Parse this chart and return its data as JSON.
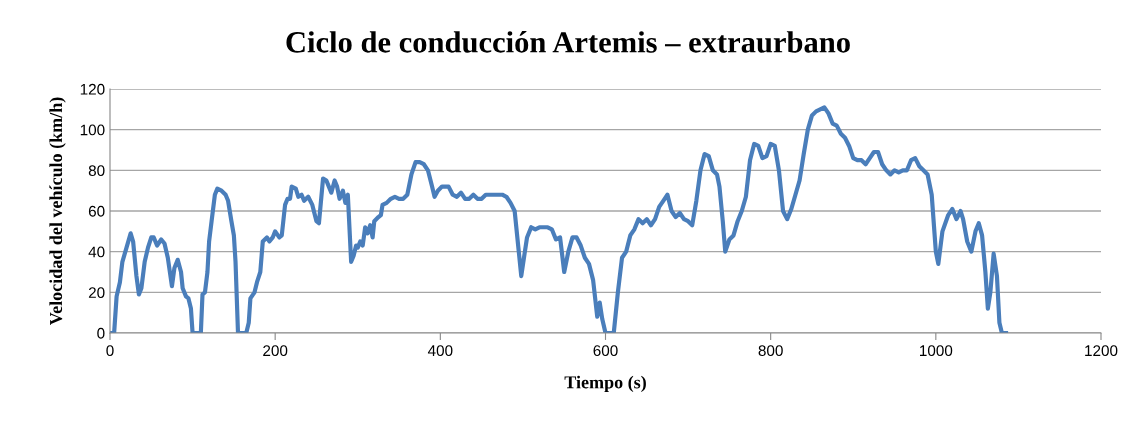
{
  "chart_data": {
    "type": "line",
    "title": "Ciclo de conducción Artemis – extraurbano",
    "xlabel": "Tiempo (s)",
    "ylabel": "Velocidad del vehículo (km/h)",
    "xlim": [
      0,
      1200
    ],
    "xticks": [
      0,
      200,
      400,
      600,
      800,
      1000,
      1200
    ],
    "ylim": [
      0,
      120
    ],
    "yticks": [
      0,
      20,
      40,
      60,
      80,
      100,
      120
    ],
    "grid": "y",
    "marker": "none",
    "line_style": "solid",
    "series": [
      {
        "color": "#4a7ebb",
        "x": [
          0,
          5,
          8,
          12,
          15,
          20,
          25,
          28,
          32,
          35,
          38,
          42,
          46,
          50,
          53,
          57,
          62,
          66,
          70,
          75,
          78,
          82,
          86,
          88,
          92,
          95,
          98,
          100,
          110,
          112,
          115,
          118,
          120,
          123,
          127,
          130,
          135,
          140,
          143,
          147,
          150,
          152,
          155,
          165,
          168,
          170,
          175,
          178,
          182,
          185,
          190,
          193,
          197,
          200,
          205,
          208,
          212,
          215,
          218,
          220,
          225,
          228,
          232,
          235,
          240,
          245,
          250,
          253,
          258,
          262,
          265,
          268,
          272,
          275,
          278,
          282,
          285,
          288,
          292,
          295,
          298,
          300,
          303,
          306,
          309,
          312,
          315,
          318,
          320,
          325,
          328,
          330,
          335,
          340,
          345,
          350,
          355,
          360,
          365,
          370,
          375,
          380,
          385,
          390,
          393,
          397,
          402,
          410,
          415,
          420,
          425,
          430,
          435,
          440,
          445,
          450,
          455,
          460,
          470,
          475,
          480,
          485,
          490,
          495,
          498,
          502,
          505,
          510,
          515,
          520,
          530,
          535,
          540,
          545,
          550,
          555,
          560,
          565,
          570,
          575,
          580,
          585,
          590,
          593,
          596,
          600,
          610,
          615,
          620,
          625,
          630,
          635,
          640,
          645,
          650,
          655,
          660,
          665,
          670,
          675,
          680,
          685,
          690,
          695,
          700,
          705,
          710,
          715,
          720,
          725,
          730,
          735,
          738,
          742,
          745,
          750,
          755,
          760,
          765,
          770,
          775,
          780,
          785,
          790,
          795,
          800,
          805,
          810,
          815,
          820,
          825,
          830,
          835,
          840,
          845,
          850,
          855,
          860,
          865,
          870,
          875,
          880,
          885,
          890,
          895,
          900,
          905,
          910,
          915,
          920,
          925,
          930,
          935,
          940,
          945,
          950,
          955,
          960,
          965,
          970,
          975,
          980,
          985,
          990,
          995,
          1000,
          1003,
          1008,
          1015,
          1020,
          1025,
          1030,
          1033,
          1038,
          1043,
          1048,
          1052,
          1056,
          1060,
          1063,
          1066,
          1070,
          1074,
          1077,
          1080,
          1085
        ],
        "values": [
          0,
          0,
          18,
          25,
          35,
          42,
          49,
          45,
          28,
          19,
          22,
          35,
          42,
          47,
          47,
          43,
          46,
          44,
          37,
          23,
          32,
          36,
          30,
          22,
          18,
          17,
          12,
          0,
          0,
          19,
          20,
          30,
          45,
          55,
          68,
          71,
          70,
          68,
          65,
          55,
          48,
          35,
          0,
          0,
          5,
          17,
          20,
          25,
          30,
          45,
          47,
          45,
          47,
          50,
          47,
          48,
          63,
          66,
          66,
          72,
          71,
          67,
          68,
          65,
          67,
          63,
          55,
          54,
          76,
          75,
          72,
          69,
          75,
          72,
          66,
          70,
          64,
          68,
          35,
          38,
          43,
          42,
          45,
          43,
          52,
          49,
          53,
          47,
          55,
          57,
          58,
          63,
          64,
          66,
          67,
          66,
          66,
          68,
          78,
          84,
          84,
          83,
          80,
          72,
          67,
          70,
          72,
          72,
          68,
          67,
          69,
          66,
          66,
          68,
          66,
          66,
          68,
          68,
          68,
          68,
          67,
          64,
          60,
          40,
          28,
          39,
          47,
          52,
          51,
          52,
          52,
          51,
          46,
          47,
          30,
          40,
          47,
          47,
          43,
          37,
          34,
          26,
          8,
          15,
          7,
          0,
          0,
          20,
          37,
          40,
          48,
          51,
          56,
          54,
          56,
          53,
          56,
          62,
          65,
          68,
          60,
          57,
          59,
          56,
          55,
          53,
          65,
          80,
          88,
          87,
          80,
          78,
          72,
          55,
          40,
          46,
          48,
          55,
          60,
          67,
          85,
          93,
          92,
          86,
          87,
          93,
          92,
          80,
          60,
          56,
          61,
          68,
          75,
          88,
          100,
          107,
          109,
          110,
          111,
          108,
          103,
          102,
          98,
          96,
          92,
          86,
          85,
          85,
          83,
          86,
          89,
          89,
          83,
          80,
          78,
          80,
          79,
          80,
          80,
          85,
          86,
          82,
          80,
          78,
          68,
          40,
          34,
          50,
          58,
          61,
          56,
          60,
          56,
          45,
          40,
          50,
          54,
          48,
          30,
          12,
          20,
          39,
          28,
          5,
          0,
          0
        ]
      }
    ]
  }
}
